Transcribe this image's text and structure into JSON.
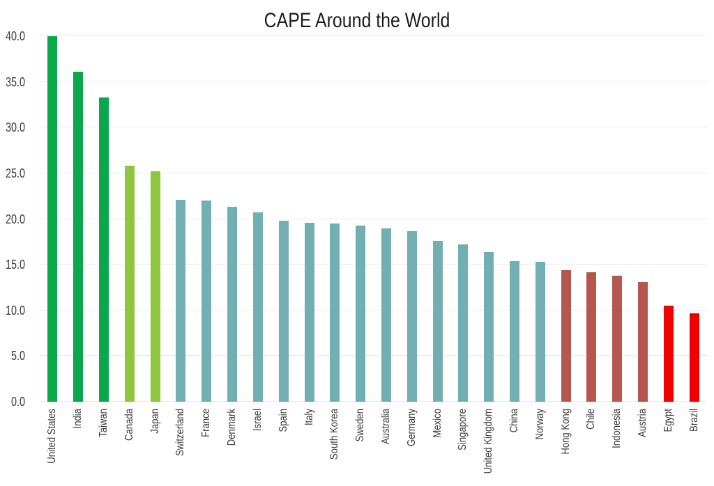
{
  "chart": {
    "title": "CAPE Around the World"
  },
  "chart_data": {
    "type": "bar",
    "title": "CAPE Around the World",
    "xlabel": "",
    "ylabel": "",
    "ylim": [
      0,
      40
    ],
    "grid": true,
    "legend": false,
    "background": "#ffffff",
    "gridline_color": "#ebebeb",
    "text_color": "#3b3b3b",
    "title_color": "#1c1c1c",
    "yticks": [
      "0.0",
      "5.0",
      "10.0",
      "15.0",
      "20.0",
      "25.0",
      "30.0",
      "35.0",
      "40.0"
    ],
    "categories": [
      "United States",
      "India",
      "Taiwan",
      "Canada",
      "Japan",
      "Switzerland",
      "France",
      "Denmark",
      "Israel",
      "Spain",
      "Italy",
      "South Korea",
      "Sweden",
      "Australia",
      "Germany",
      "Mexico",
      "Singapore",
      "United Kingdom",
      "China",
      "Norway",
      "Hong Kong",
      "Chile",
      "Indonesia",
      "Austria",
      "Egypt",
      "Brazil"
    ],
    "values": [
      40.0,
      36.1,
      33.3,
      25.8,
      25.2,
      22.1,
      22.0,
      21.3,
      20.7,
      19.8,
      19.6,
      19.5,
      19.3,
      19.0,
      18.7,
      17.6,
      17.2,
      16.4,
      15.4,
      15.3,
      14.4,
      14.2,
      13.8,
      13.1,
      10.5,
      9.7
    ],
    "palette": {
      "green": "#0aa84c",
      "lime": "#8ec63f",
      "teal": "#72afb2",
      "maroon": "#b5564f",
      "red": "#f30000"
    },
    "bar_colors": [
      "#0aa84c",
      "#0aa84c",
      "#0aa84c",
      "#8ec63f",
      "#8ec63f",
      "#72afb2",
      "#72afb2",
      "#72afb2",
      "#72afb2",
      "#72afb2",
      "#72afb2",
      "#72afb2",
      "#72afb2",
      "#72afb2",
      "#72afb2",
      "#72afb2",
      "#72afb2",
      "#72afb2",
      "#72afb2",
      "#72afb2",
      "#b5564f",
      "#b5564f",
      "#b5564f",
      "#b5564f",
      "#f30000",
      "#f30000"
    ]
  }
}
